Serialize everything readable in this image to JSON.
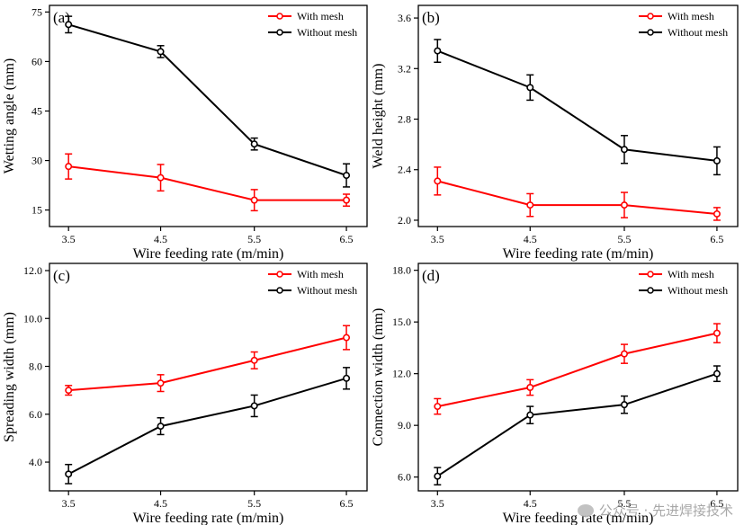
{
  "chart_data": [
    {
      "type": "line",
      "panel_label": "(a)",
      "xlabel": "Wire feeding rate (m/min)",
      "ylabel": "Wetting angle (mm)",
      "x": [
        3.5,
        4.5,
        5.5,
        6.5
      ],
      "x_tick_labels": [
        "3.5",
        "4.5",
        "5.5",
        "6.5"
      ],
      "ylim": [
        10,
        77
      ],
      "y_ticks": [
        15,
        30,
        45,
        60,
        75
      ],
      "y_tick_labels": [
        "15",
        "30",
        "45",
        "60",
        "75"
      ],
      "legend_position": "top-right",
      "series": [
        {
          "name": "With mesh",
          "color": "#ff0000",
          "values": [
            28.2,
            24.8,
            18.0,
            18.0
          ],
          "errors": [
            3.8,
            4.0,
            3.2,
            1.8
          ]
        },
        {
          "name": "Without mesh",
          "color": "#000000",
          "values": [
            71.2,
            63.0,
            35.0,
            25.5
          ],
          "errors": [
            2.5,
            1.8,
            1.8,
            3.5
          ]
        }
      ]
    },
    {
      "type": "line",
      "panel_label": "(b)",
      "xlabel": "Wire feeding rate (m/min)",
      "ylabel": "Weld height (mm)",
      "x": [
        3.5,
        4.5,
        5.5,
        6.5
      ],
      "x_tick_labels": [
        "3.5",
        "4.5",
        "5.5",
        "6.5"
      ],
      "ylim": [
        1.95,
        3.7
      ],
      "y_ticks": [
        2.0,
        2.4,
        2.8,
        3.2,
        3.6
      ],
      "y_tick_labels": [
        "2.0",
        "2.4",
        "2.8",
        "3.2",
        "3.6"
      ],
      "legend_position": "top-right",
      "series": [
        {
          "name": "With mesh",
          "color": "#ff0000",
          "values": [
            2.31,
            2.12,
            2.12,
            2.05
          ],
          "errors": [
            0.11,
            0.09,
            0.1,
            0.05
          ]
        },
        {
          "name": "Without mesh",
          "color": "#000000",
          "values": [
            3.34,
            3.05,
            2.56,
            2.47
          ],
          "errors": [
            0.09,
            0.1,
            0.11,
            0.11
          ]
        }
      ]
    },
    {
      "type": "line",
      "panel_label": "(c)",
      "xlabel": "Wire feeding rate (m/min)",
      "ylabel": "Spreading width (mm)",
      "x": [
        3.5,
        4.5,
        5.5,
        6.5
      ],
      "x_tick_labels": [
        "3.5",
        "4.5",
        "5.5",
        "6.5"
      ],
      "ylim": [
        2.8,
        12.3
      ],
      "y_ticks": [
        4.0,
        6.0,
        8.0,
        10.0,
        12.0
      ],
      "y_tick_labels": [
        "4.0",
        "6.0",
        "8.0",
        "10.0",
        "12.0"
      ],
      "legend_position": "top-right",
      "series": [
        {
          "name": "With mesh",
          "color": "#ff0000",
          "values": [
            7.0,
            7.3,
            8.25,
            9.2
          ],
          "errors": [
            0.2,
            0.35,
            0.35,
            0.5
          ]
        },
        {
          "name": "Without mesh",
          "color": "#000000",
          "values": [
            3.5,
            5.5,
            6.35,
            7.5
          ],
          "errors": [
            0.4,
            0.35,
            0.45,
            0.45
          ]
        }
      ]
    },
    {
      "type": "line",
      "panel_label": "(d)",
      "xlabel": "Wire feeding rate (m/min)",
      "ylabel": "Connection width (mm)",
      "x": [
        3.5,
        4.5,
        5.5,
        6.5
      ],
      "x_tick_labels": [
        "3.5",
        "4.5",
        "5.5",
        "6.5"
      ],
      "ylim": [
        5.2,
        18.4
      ],
      "y_ticks": [
        6.0,
        9.0,
        12.0,
        15.0,
        18.0
      ],
      "y_tick_labels": [
        "6.0",
        "9.0",
        "12.0",
        "15.0",
        "18.0"
      ],
      "legend_position": "top-right",
      "series": [
        {
          "name": "With mesh",
          "color": "#ff0000",
          "values": [
            10.1,
            11.2,
            13.15,
            14.35
          ],
          "errors": [
            0.45,
            0.45,
            0.55,
            0.55
          ]
        },
        {
          "name": "Without mesh",
          "color": "#000000",
          "values": [
            6.05,
            9.6,
            10.2,
            12.0
          ],
          "errors": [
            0.5,
            0.5,
            0.5,
            0.45
          ]
        }
      ]
    }
  ],
  "watermark": {
    "text": "公众号 · 先进焊接技术",
    "icon": "wechat-icon"
  }
}
